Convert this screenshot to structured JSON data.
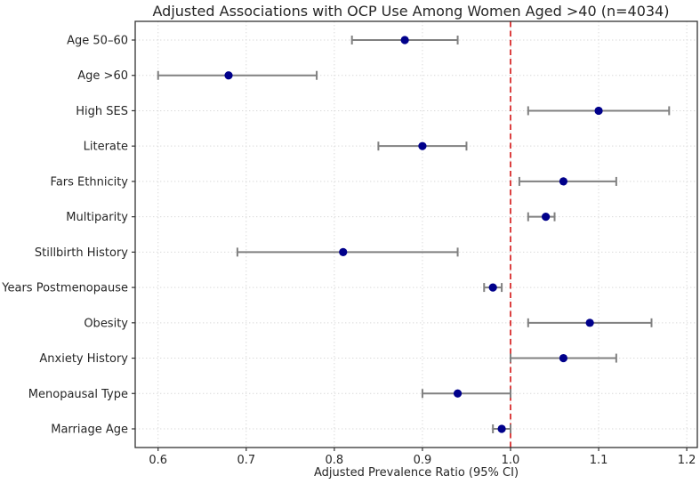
{
  "chart_data": {
    "type": "scatter",
    "subtype": "forest-plot",
    "title": "Adjusted Associations with OCP Use Among Women Aged >40 (n=4034)",
    "xlabel": "Adjusted Prevalence Ratio (95% CI)",
    "ylabel": "",
    "categories": [
      "Age 50–60",
      "Age >60",
      "High SES",
      "Literate",
      "Fars Ethnicity",
      "Multiparity",
      "Stillbirth History",
      "Years Postmenopause",
      "Obesity",
      "Anxiety History",
      "Menopausal Type",
      "Marriage Age"
    ],
    "series": [
      {
        "name": "Adjusted Prevalence Ratio with 95% CI",
        "points": [
          {
            "label": "Age 50–60",
            "pr": 0.88,
            "ci_low": 0.82,
            "ci_high": 0.94
          },
          {
            "label": "Age >60",
            "pr": 0.68,
            "ci_low": 0.6,
            "ci_high": 0.78
          },
          {
            "label": "High SES",
            "pr": 1.1,
            "ci_low": 1.02,
            "ci_high": 1.18
          },
          {
            "label": "Literate",
            "pr": 0.9,
            "ci_low": 0.85,
            "ci_high": 0.95
          },
          {
            "label": "Fars Ethnicity",
            "pr": 1.06,
            "ci_low": 1.01,
            "ci_high": 1.12
          },
          {
            "label": "Multiparity",
            "pr": 1.04,
            "ci_low": 1.02,
            "ci_high": 1.05
          },
          {
            "label": "Stillbirth History",
            "pr": 0.81,
            "ci_low": 0.69,
            "ci_high": 0.94
          },
          {
            "label": "Years Postmenopause",
            "pr": 0.98,
            "ci_low": 0.97,
            "ci_high": 0.99
          },
          {
            "label": "Obesity",
            "pr": 1.09,
            "ci_low": 1.02,
            "ci_high": 1.16
          },
          {
            "label": "Anxiety History",
            "pr": 1.06,
            "ci_low": 1.0,
            "ci_high": 1.12
          },
          {
            "label": "Menopausal Type",
            "pr": 0.94,
            "ci_low": 0.9,
            "ci_high": 1.0
          },
          {
            "label": "Marriage Age",
            "pr": 0.99,
            "ci_low": 0.98,
            "ci_high": 1.0
          }
        ]
      }
    ],
    "xlim": [
      0.574,
      1.212
    ],
    "x_ticks": [
      0.6,
      0.7,
      0.8,
      0.9,
      1.0,
      1.1,
      1.2
    ],
    "x_tick_labels": [
      "0.6",
      "0.7",
      "0.8",
      "0.9",
      "1.0",
      "1.1",
      "1.2"
    ],
    "reference_line": {
      "x": 1.0,
      "style": "dashed"
    },
    "grid": true,
    "grid_style": "dotted",
    "legend_position": "none",
    "colors": {
      "point": "#00008b",
      "error_bar": "#808080",
      "reference": "#d62020",
      "grid": "#d9d9d9",
      "spine": "#333333",
      "text": "#262626",
      "background": "#ffffff"
    }
  }
}
